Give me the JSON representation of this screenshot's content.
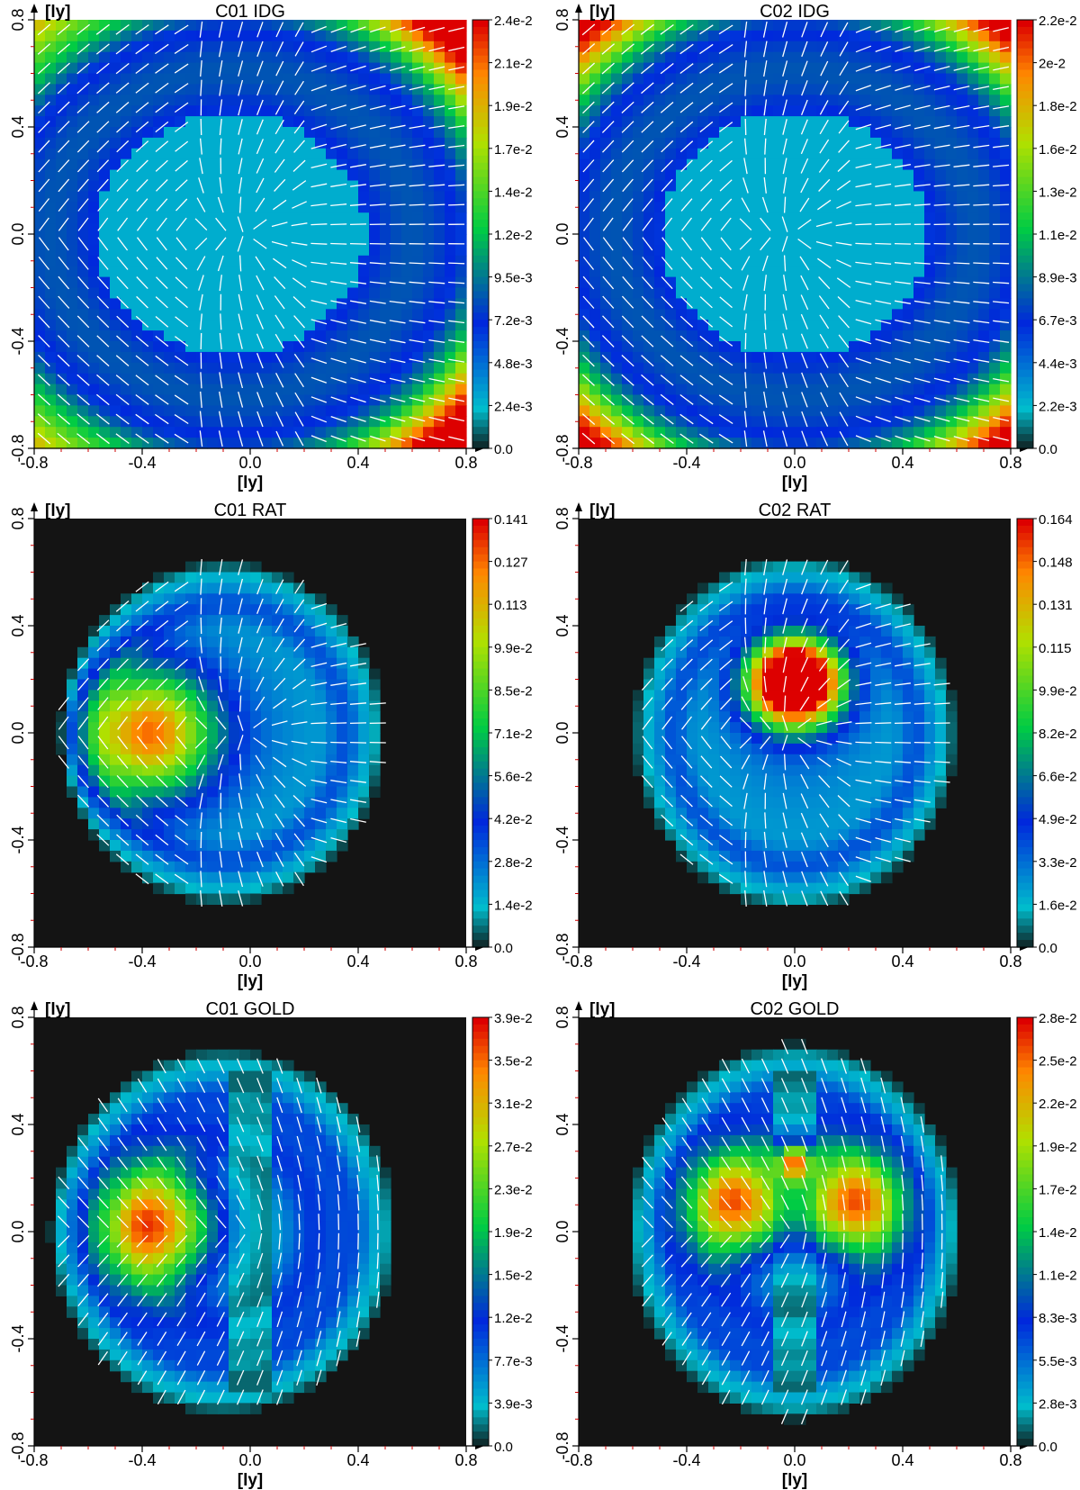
{
  "chart_data": [
    {
      "type": "heatmap",
      "title": "C01 IDG",
      "xlabel": "[ly]",
      "ylabel": "[ly]",
      "xlim": [
        -0.8,
        0.8
      ],
      "ylim": [
        -0.8,
        0.8
      ],
      "xticks": [
        "-0.8",
        "-0.4",
        "0.0",
        "0.4",
        "0.8"
      ],
      "yticks": [
        "-0.8",
        "-0.4",
        "0.0",
        "0.4",
        "0.8"
      ],
      "colorbar": {
        "min": 0.0,
        "max": 0.024,
        "labels": [
          "2.4e-2",
          "2.1e-2",
          "1.9e-2",
          "1.7e-2",
          "1.4e-2",
          "1.2e-2",
          "9.5e-3",
          "7.2e-3",
          "4.8e-3",
          "2.4e-3",
          "0.0"
        ]
      },
      "background": "field",
      "pattern": "idg",
      "params": {
        "warm_corner": "top-right-bottom-right",
        "offset": -0.07
      }
    },
    {
      "type": "heatmap",
      "title": "C02 IDG",
      "xlabel": "[ly]",
      "ylabel": "[ly]",
      "xlim": [
        -0.8,
        0.8
      ],
      "ylim": [
        -0.8,
        0.8
      ],
      "xticks": [
        "-0.8",
        "-0.4",
        "0.0",
        "0.4",
        "0.8"
      ],
      "yticks": [
        "-0.8",
        "-0.4",
        "0.0",
        "0.4",
        "0.8"
      ],
      "colorbar": {
        "min": 0.0,
        "max": 0.022,
        "labels": [
          "2.2e-2",
          "2e-2",
          "1.8e-2",
          "1.6e-2",
          "1.3e-2",
          "1.1e-2",
          "8.9e-3",
          "6.7e-3",
          "4.4e-3",
          "2.2e-3",
          "0.0"
        ]
      },
      "background": "field",
      "pattern": "idg",
      "params": {
        "warm_corner": "all",
        "offset": 0.0
      }
    },
    {
      "type": "heatmap",
      "title": "C01 RAT",
      "xlabel": "[ly]",
      "ylabel": "[ly]",
      "xlim": [
        -0.8,
        0.8
      ],
      "ylim": [
        -0.8,
        0.8
      ],
      "xticks": [
        "-0.8",
        "-0.4",
        "0.0",
        "0.4",
        "0.8"
      ],
      "yticks": [
        "-0.8",
        "-0.4",
        "0.0",
        "0.4",
        "0.8"
      ],
      "colorbar": {
        "min": 0.0,
        "max": 0.141,
        "labels": [
          "0.141",
          "0.127",
          "0.113",
          "9.9e-2",
          "8.5e-2",
          "7.1e-2",
          "5.6e-2",
          "4.2e-2",
          "2.8e-2",
          "1.4e-2",
          "0.0"
        ]
      },
      "background": "#141414",
      "pattern": "rat",
      "params": {
        "cx": -0.1,
        "cy": 0.0,
        "rx": 0.58,
        "ry": 0.62,
        "hot": [
          [
            -0.38,
            0.0,
            0.17,
            1.0
          ]
        ]
      }
    },
    {
      "type": "heatmap",
      "title": "C02 RAT",
      "xlabel": "[ly]",
      "ylabel": "[ly]",
      "xlim": [
        -0.8,
        0.8
      ],
      "ylim": [
        -0.8,
        0.8
      ],
      "xticks": [
        "-0.8",
        "-0.4",
        "0.0",
        "0.4",
        "0.8"
      ],
      "yticks": [
        "-0.8",
        "-0.4",
        "0.0",
        "0.4",
        "0.8"
      ],
      "colorbar": {
        "min": 0.0,
        "max": 0.164,
        "labels": [
          "0.164",
          "0.148",
          "0.131",
          "0.115",
          "9.9e-2",
          "8.2e-2",
          "6.6e-2",
          "4.9e-2",
          "3.3e-2",
          "1.6e-2",
          "0.0"
        ]
      },
      "background": "#141414",
      "pattern": "rat",
      "params": {
        "cx": 0.0,
        "cy": 0.0,
        "rx": 0.58,
        "ry": 0.64,
        "hot": [
          [
            -0.04,
            0.19,
            0.11,
            1.0
          ],
          [
            0.04,
            0.19,
            0.11,
            1.0
          ]
        ]
      }
    },
    {
      "type": "heatmap",
      "title": "C01 GOLD",
      "xlabel": "[ly]",
      "ylabel": "[ly]",
      "xlim": [
        -0.8,
        0.8
      ],
      "ylim": [
        -0.8,
        0.8
      ],
      "xticks": [
        "-0.8",
        "-0.4",
        "0.0",
        "0.4",
        "0.8"
      ],
      "yticks": [
        "-0.8",
        "-0.4",
        "0.0",
        "0.4",
        "0.8"
      ],
      "colorbar": {
        "min": 0.0,
        "max": 0.039,
        "labels": [
          "3.9e-2",
          "3.5e-2",
          "3.1e-2",
          "2.7e-2",
          "2.3e-2",
          "1.9e-2",
          "1.5e-2",
          "1.2e-2",
          "7.7e-3",
          "3.9e-3",
          "0.0"
        ]
      },
      "background": "#141414",
      "pattern": "gold",
      "params": {
        "cx": -0.1,
        "cy": 0.0,
        "rx": 0.62,
        "ry": 0.66,
        "hot": [
          [
            -0.34,
            0.02,
            0.15,
            1.0
          ]
        ]
      }
    },
    {
      "type": "heatmap",
      "title": "C02 GOLD",
      "xlabel": "[ly]",
      "ylabel": "[ly]",
      "xlim": [
        -0.8,
        0.8
      ],
      "ylim": [
        -0.8,
        0.8
      ],
      "xticks": [
        "-0.8",
        "-0.4",
        "0.0",
        "0.4",
        "0.8"
      ],
      "yticks": [
        "-0.8",
        "-0.4",
        "0.0",
        "0.4",
        "0.8"
      ],
      "colorbar": {
        "min": 0.0,
        "max": 0.028,
        "labels": [
          "2.8e-2",
          "2.5e-2",
          "2.2e-2",
          "1.9e-2",
          "1.7e-2",
          "1.4e-2",
          "1.1e-2",
          "8.3e-3",
          "5.5e-3",
          "2.8e-3",
          "0.0"
        ]
      },
      "background": "#141414",
      "pattern": "gold",
      "params": {
        "cx": 0.0,
        "cy": 0.0,
        "rx": 0.6,
        "ry": 0.68,
        "hot": [
          [
            -0.2,
            0.1,
            0.13,
            1.0
          ],
          [
            0.2,
            0.1,
            0.13,
            1.0
          ],
          [
            0.0,
            0.26,
            0.05,
            0.9
          ]
        ]
      }
    }
  ]
}
